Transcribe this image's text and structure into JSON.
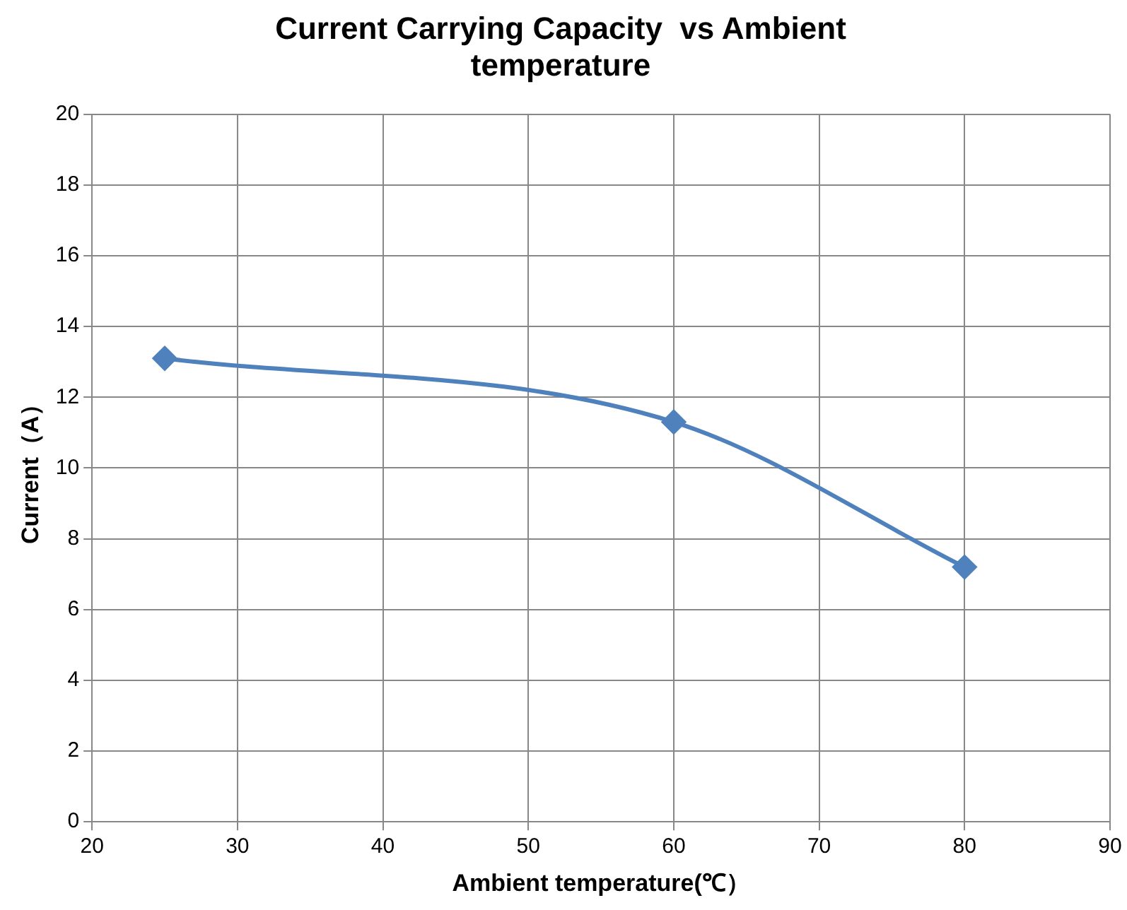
{
  "chart_data": {
    "type": "line",
    "title": "Current Carrying Capacity  vs Ambient temperature",
    "xlabel": "Ambient temperature(℃）",
    "ylabel": "Current（A）",
    "x": [
      25,
      60,
      80
    ],
    "series": [
      {
        "color": "#4f81bd",
        "values": [
          13.1,
          11.3,
          7.2
        ]
      }
    ],
    "xlim": [
      20,
      90
    ],
    "xticks": [
      20,
      30,
      40,
      50,
      60,
      70,
      80,
      90
    ],
    "ylim": [
      0,
      20
    ],
    "yticks": [
      0,
      2,
      4,
      6,
      8,
      10,
      12,
      14,
      16,
      18,
      20
    ],
    "grid": true,
    "legend": false,
    "marker": "diamond",
    "line_style": "solid"
  }
}
